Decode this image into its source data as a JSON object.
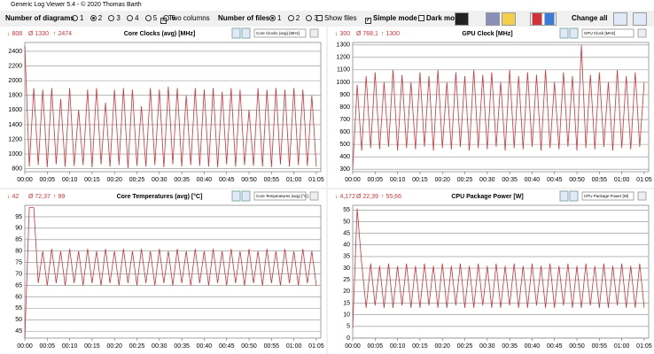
{
  "window": {
    "title": "Generic Log Viewer 5.4 - © 2020 Thomas Barth"
  },
  "toolbar": {
    "diagrams_label": "Number of diagrams",
    "diagram_options": [
      "1",
      "2",
      "3",
      "4",
      "5",
      "6"
    ],
    "two_columns": "Two columns",
    "files_label": "Number of files",
    "file_options": [
      "1",
      "2",
      "3"
    ],
    "show_files": "Show files",
    "simple_mode": "Simple mode",
    "dark_mode": "Dark mod",
    "change_all": "Change all"
  },
  "chart_data": [
    {
      "type": "line",
      "title": "Core Clocks (avg) [MHz]",
      "stats": [
        "↓ 808",
        "Ø 1330",
        "↑ 2474"
      ],
      "x": [
        0,
        1,
        2,
        3,
        4,
        5,
        6,
        7,
        8,
        9,
        10,
        11,
        12,
        13,
        14,
        15,
        16,
        17,
        18,
        19,
        20,
        21,
        22,
        23,
        24,
        25,
        26,
        27,
        28,
        29,
        30,
        31,
        32,
        33,
        34,
        35,
        36,
        37,
        38,
        39,
        40,
        41,
        42,
        43,
        44,
        45,
        46,
        47,
        48,
        49,
        50,
        51,
        52,
        53,
        54,
        55,
        56,
        57,
        58,
        59,
        60,
        61,
        62,
        63,
        64,
        65
      ],
      "xlim": [
        0,
        66
      ],
      "xticks": [
        {
          "value": 0,
          "label": "00:00"
        },
        {
          "value": 5,
          "label": "00:05"
        },
        {
          "value": 10,
          "label": "00:10"
        },
        {
          "value": 15,
          "label": "00:15"
        },
        {
          "value": 20,
          "label": "00:20"
        },
        {
          "value": 25,
          "label": "00:25"
        },
        {
          "value": 30,
          "label": "00:30"
        },
        {
          "value": 35,
          "label": "00:35"
        },
        {
          "value": 40,
          "label": "00:40"
        },
        {
          "value": 45,
          "label": "00:45"
        },
        {
          "value": 50,
          "label": "00:50"
        },
        {
          "value": 55,
          "label": "00:55"
        },
        {
          "value": 60,
          "label": "01:00"
        },
        {
          "value": 65,
          "label": "01:05"
        }
      ],
      "ylim": [
        760,
        2520
      ],
      "yticks": [
        800,
        1000,
        1200,
        1400,
        1600,
        1800,
        2000,
        2200,
        2400
      ],
      "grid": true,
      "series": [
        {
          "color": "#d0343a",
          "values": [
            2474,
            830,
            1900,
            850,
            1880,
            820,
            1900,
            860,
            1750,
            830,
            1900,
            840,
            1600,
            850,
            1880,
            820,
            1900,
            860,
            1700,
            830,
            1880,
            850,
            1900,
            808,
            1880,
            840,
            1650,
            830,
            1900,
            850,
            1880,
            820,
            1920,
            860,
            1900,
            830,
            1800,
            850,
            1900,
            840,
            1880,
            830,
            1900,
            820,
            1850,
            860,
            1900,
            830,
            1880,
            850,
            1600,
            840,
            1900,
            830,
            1880,
            820,
            1900,
            860,
            1880,
            830,
            1900,
            850,
            1880,
            840,
            1800,
            830
          ]
        }
      ]
    },
    {
      "type": "line",
      "title": "GPU Clock [MHz]",
      "stats": [
        "↓ 300",
        "Ø 768,1",
        "↑ 1300"
      ],
      "x": [
        0,
        1,
        2,
        3,
        4,
        5,
        6,
        7,
        8,
        9,
        10,
        11,
        12,
        13,
        14,
        15,
        16,
        17,
        18,
        19,
        20,
        21,
        22,
        23,
        24,
        25,
        26,
        27,
        28,
        29,
        30,
        31,
        32,
        33,
        34,
        35,
        36,
        37,
        38,
        39,
        40,
        41,
        42,
        43,
        44,
        45,
        46,
        47,
        48,
        49,
        50,
        51,
        52,
        53,
        54,
        55,
        56,
        57,
        58,
        59,
        60,
        61,
        62,
        63,
        64,
        65
      ],
      "xlim": [
        0,
        66
      ],
      "xticks": [
        {
          "value": 0,
          "label": "00:00"
        },
        {
          "value": 5,
          "label": "00:05"
        },
        {
          "value": 10,
          "label": "00:10"
        },
        {
          "value": 15,
          "label": "00:15"
        },
        {
          "value": 20,
          "label": "00:20"
        },
        {
          "value": 25,
          "label": "00:25"
        },
        {
          "value": 30,
          "label": "00:30"
        },
        {
          "value": 35,
          "label": "00:35"
        },
        {
          "value": 40,
          "label": "00:40"
        },
        {
          "value": 45,
          "label": "00:45"
        },
        {
          "value": 50,
          "label": "00:50"
        },
        {
          "value": 55,
          "label": "00:55"
        },
        {
          "value": 60,
          "label": "01:00"
        },
        {
          "value": 65,
          "label": "01:05"
        }
      ],
      "ylim": [
        280,
        1320
      ],
      "yticks": [
        300,
        400,
        500,
        600,
        700,
        800,
        900,
        1000,
        1100,
        1200,
        1300
      ],
      "grid": true,
      "series": [
        {
          "color": "#d0343a",
          "values": [
            300,
            980,
            450,
            1050,
            470,
            1080,
            460,
            1000,
            480,
            1100,
            450,
            1060,
            470,
            1000,
            460,
            1080,
            480,
            1050,
            450,
            1100,
            470,
            1000,
            460,
            1080,
            480,
            1050,
            450,
            1100,
            470,
            1060,
            460,
            1080,
            480,
            1000,
            450,
            1100,
            470,
            1050,
            460,
            1080,
            480,
            1060,
            450,
            1100,
            470,
            1000,
            460,
            1080,
            480,
            1050,
            450,
            1300,
            470,
            1060,
            460,
            1080,
            480,
            1000,
            450,
            1100,
            470,
            1050,
            460,
            1080,
            480,
            1000
          ]
        }
      ]
    },
    {
      "type": "line",
      "title": "Core Temperatures (avg) [°C]",
      "stats": [
        "↓ 42",
        "Ø 72,37",
        "↑ 99"
      ],
      "x": [
        0,
        1,
        2,
        3,
        4,
        5,
        6,
        7,
        8,
        9,
        10,
        11,
        12,
        13,
        14,
        15,
        16,
        17,
        18,
        19,
        20,
        21,
        22,
        23,
        24,
        25,
        26,
        27,
        28,
        29,
        30,
        31,
        32,
        33,
        34,
        35,
        36,
        37,
        38,
        39,
        40,
        41,
        42,
        43,
        44,
        45,
        46,
        47,
        48,
        49,
        50,
        51,
        52,
        53,
        54,
        55,
        56,
        57,
        58,
        59,
        60,
        61,
        62,
        63,
        64,
        65
      ],
      "xlim": [
        0,
        66
      ],
      "xticks": [
        {
          "value": 0,
          "label": "00:00"
        },
        {
          "value": 5,
          "label": "00:05"
        },
        {
          "value": 10,
          "label": "00:10"
        },
        {
          "value": 15,
          "label": "00:15"
        },
        {
          "value": 20,
          "label": "00:20"
        },
        {
          "value": 25,
          "label": "00:25"
        },
        {
          "value": 30,
          "label": "00:30"
        },
        {
          "value": 35,
          "label": "00:35"
        },
        {
          "value": 40,
          "label": "00:40"
        },
        {
          "value": 45,
          "label": "00:45"
        },
        {
          "value": 50,
          "label": "00:50"
        },
        {
          "value": 55,
          "label": "00:55"
        },
        {
          "value": 60,
          "label": "01:00"
        },
        {
          "value": 65,
          "label": "01:05"
        }
      ],
      "ylim": [
        42,
        100
      ],
      "yticks": [
        45,
        50,
        55,
        60,
        65,
        70,
        75,
        80,
        85,
        90,
        95
      ],
      "grid": true,
      "series": [
        {
          "color": "#d0343a",
          "values": [
            42,
            99,
            99,
            66,
            80,
            65,
            81,
            66,
            80,
            65,
            81,
            66,
            80,
            65,
            81,
            66,
            80,
            65,
            81,
            66,
            80,
            65,
            81,
            66,
            80,
            65,
            81,
            66,
            80,
            65,
            81,
            66,
            80,
            65,
            81,
            66,
            80,
            65,
            81,
            66,
            80,
            65,
            81,
            66,
            80,
            65,
            81,
            66,
            80,
            65,
            81,
            66,
            80,
            65,
            81,
            66,
            80,
            65,
            81,
            66,
            80,
            65,
            81,
            66,
            80,
            65
          ]
        }
      ]
    },
    {
      "type": "line",
      "title": "CPU Package Power [W]",
      "stats": [
        "↓ 4,172",
        "Ø 22,39",
        "↑ 55,66"
      ],
      "x": [
        0,
        1,
        2,
        3,
        4,
        5,
        6,
        7,
        8,
        9,
        10,
        11,
        12,
        13,
        14,
        15,
        16,
        17,
        18,
        19,
        20,
        21,
        22,
        23,
        24,
        25,
        26,
        27,
        28,
        29,
        30,
        31,
        32,
        33,
        34,
        35,
        36,
        37,
        38,
        39,
        40,
        41,
        42,
        43,
        44,
        45,
        46,
        47,
        48,
        49,
        50,
        51,
        52,
        53,
        54,
        55,
        56,
        57,
        58,
        59,
        60,
        61,
        62,
        63,
        64,
        65
      ],
      "xlim": [
        0,
        66
      ],
      "xticks": [
        {
          "value": 0,
          "label": "00:00"
        },
        {
          "value": 5,
          "label": "00:05"
        },
        {
          "value": 10,
          "label": "00:10"
        },
        {
          "value": 15,
          "label": "00:15"
        },
        {
          "value": 20,
          "label": "00:20"
        },
        {
          "value": 25,
          "label": "00:25"
        },
        {
          "value": 30,
          "label": "00:30"
        },
        {
          "value": 35,
          "label": "00:35"
        },
        {
          "value": 40,
          "label": "00:40"
        },
        {
          "value": 45,
          "label": "00:45"
        },
        {
          "value": 50,
          "label": "00:50"
        },
        {
          "value": 55,
          "label": "00:55"
        },
        {
          "value": 60,
          "label": "01:00"
        },
        {
          "value": 65,
          "label": "01:05"
        }
      ],
      "ylim": [
        0,
        57
      ],
      "yticks": [
        0,
        5,
        10,
        15,
        20,
        25,
        30,
        35,
        40,
        45,
        50,
        55
      ],
      "grid": true,
      "series": [
        {
          "color": "#d0343a",
          "values": [
            4.172,
            55.66,
            32,
            13,
            32,
            14,
            31,
            13,
            32,
            13,
            31,
            14,
            32,
            13,
            31,
            13,
            32,
            14,
            31,
            13,
            32,
            13,
            31,
            14,
            32,
            13,
            31,
            13,
            32,
            14,
            31,
            13,
            32,
            13,
            31,
            14,
            32,
            13,
            31,
            13,
            32,
            14,
            31,
            13,
            32,
            13,
            31,
            14,
            32,
            13,
            31,
            13,
            32,
            14,
            31,
            13,
            32,
            13,
            31,
            14,
            32,
            13,
            31,
            13,
            32,
            13
          ]
        }
      ]
    }
  ]
}
